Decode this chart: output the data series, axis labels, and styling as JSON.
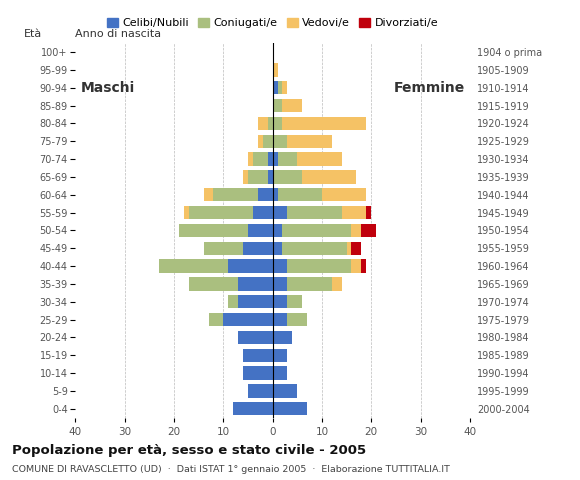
{
  "age_groups": [
    "0-4",
    "5-9",
    "10-14",
    "15-19",
    "20-24",
    "25-29",
    "30-34",
    "35-39",
    "40-44",
    "45-49",
    "50-54",
    "55-59",
    "60-64",
    "65-69",
    "70-74",
    "75-79",
    "80-84",
    "85-89",
    "90-94",
    "95-99",
    "100+"
  ],
  "birth_years": [
    "2000-2004",
    "1995-1999",
    "1990-1994",
    "1985-1989",
    "1980-1984",
    "1975-1979",
    "1970-1974",
    "1965-1969",
    "1960-1964",
    "1955-1959",
    "1950-1954",
    "1945-1949",
    "1940-1944",
    "1935-1939",
    "1930-1934",
    "1925-1929",
    "1920-1924",
    "1915-1919",
    "1910-1914",
    "1905-1909",
    "1904 o prima"
  ],
  "males": {
    "celibi": [
      8,
      5,
      6,
      6,
      7,
      10,
      7,
      7,
      9,
      6,
      5,
      4,
      3,
      1,
      1,
      0,
      0,
      0,
      0,
      0,
      0
    ],
    "coniugati": [
      0,
      0,
      0,
      0,
      0,
      3,
      2,
      10,
      14,
      8,
      14,
      13,
      9,
      4,
      3,
      2,
      1,
      0,
      0,
      0,
      0
    ],
    "vedovi": [
      0,
      0,
      0,
      0,
      0,
      0,
      0,
      0,
      0,
      0,
      0,
      1,
      2,
      1,
      1,
      1,
      2,
      0,
      0,
      0,
      0
    ],
    "divorziati": [
      0,
      0,
      0,
      0,
      0,
      0,
      0,
      0,
      0,
      0,
      0,
      0,
      0,
      0,
      0,
      0,
      0,
      0,
      0,
      0,
      0
    ]
  },
  "females": {
    "nubili": [
      7,
      5,
      3,
      3,
      4,
      3,
      3,
      3,
      3,
      2,
      2,
      3,
      1,
      0,
      1,
      0,
      0,
      0,
      1,
      0,
      0
    ],
    "coniugate": [
      0,
      0,
      0,
      0,
      0,
      4,
      3,
      9,
      13,
      13,
      14,
      11,
      9,
      6,
      4,
      3,
      2,
      2,
      1,
      0,
      0
    ],
    "vedove": [
      0,
      0,
      0,
      0,
      0,
      0,
      0,
      2,
      2,
      1,
      2,
      5,
      9,
      11,
      9,
      9,
      17,
      4,
      1,
      1,
      0
    ],
    "divorziate": [
      0,
      0,
      0,
      0,
      0,
      0,
      0,
      0,
      1,
      2,
      3,
      1,
      0,
      0,
      0,
      0,
      0,
      0,
      0,
      0,
      0
    ]
  },
  "colors": {
    "celibi_nubili": "#4472C4",
    "coniugati": "#AABF7F",
    "vedovi": "#F5C265",
    "divorziati": "#C0000C"
  },
  "title": "Popolazione per età, sesso e stato civile - 2005",
  "subtitle": "COMUNE DI RAVASCLETTO (UD)  ·  Dati ISTAT 1° gennaio 2005  ·  Elaborazione TUTTITALIA.IT",
  "xlabel_left": "Maschi",
  "xlabel_right": "Femmine",
  "ylabel_left": "Età",
  "ylabel_right": "Anno di nascita",
  "xlim": 40,
  "legend_labels": [
    "Celibi/Nubili",
    "Coniugati/e",
    "Vedovi/e",
    "Divorziati/e"
  ],
  "background_color": "#ffffff"
}
